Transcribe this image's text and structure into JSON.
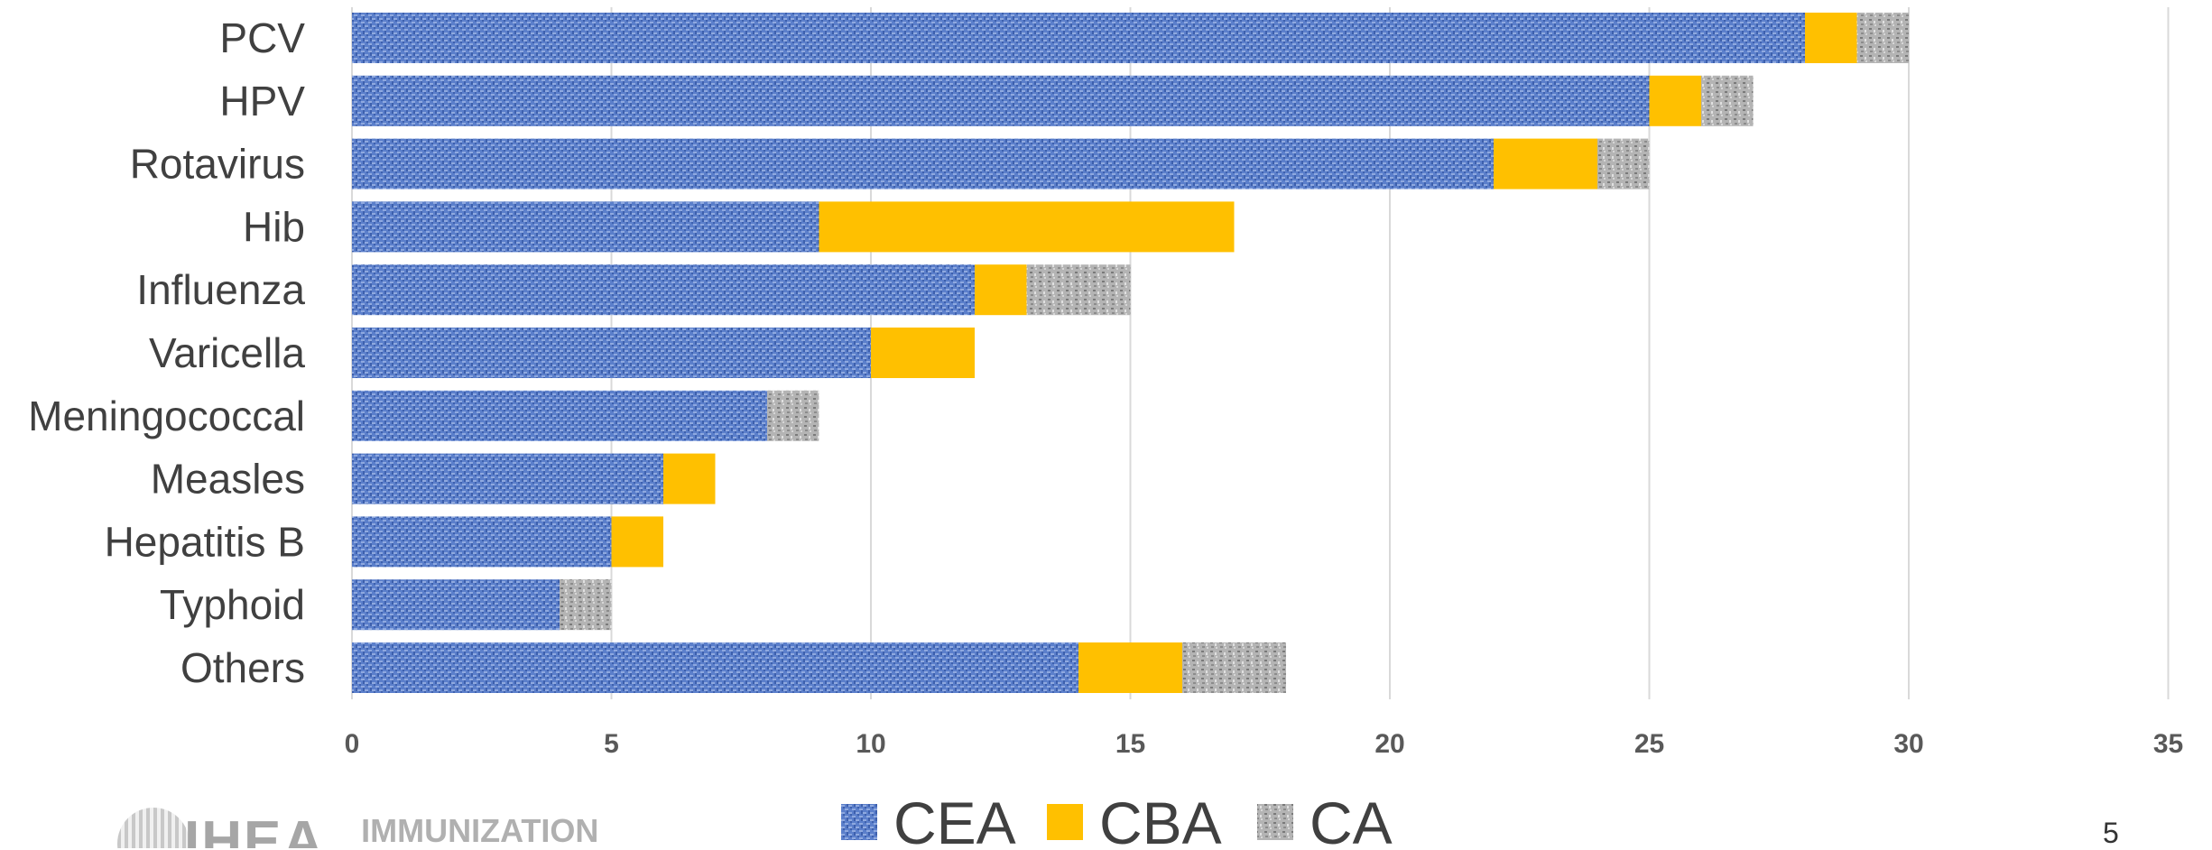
{
  "chart_data": {
    "type": "bar",
    "orientation": "horizontal",
    "stacked": true,
    "categories": [
      "PCV",
      "HPV",
      "Rotavirus",
      "Hib",
      "Influenza",
      "Varicella",
      "Meningococcal",
      "Measles",
      "Hepatitis B",
      "Typhoid",
      "Others"
    ],
    "series": [
      {
        "name": "CEA",
        "values": [
          28,
          25,
          22,
          9,
          12,
          10,
          8,
          6,
          5,
          4,
          14
        ],
        "color": "#4f74c4",
        "pattern": "woven-blue"
      },
      {
        "name": "CBA",
        "values": [
          1,
          1,
          2,
          8,
          1,
          2,
          0,
          1,
          1,
          0,
          2
        ],
        "color": "#ffc000",
        "pattern": "solid"
      },
      {
        "name": "CA",
        "values": [
          1,
          1,
          1,
          0,
          2,
          0,
          1,
          0,
          0,
          1,
          2
        ],
        "color": "#a6a6a6",
        "pattern": "granite-gray"
      }
    ],
    "xlim": [
      0,
      35
    ],
    "xticks": [
      0,
      5,
      10,
      15,
      20,
      25,
      30,
      35
    ],
    "grid": true,
    "legend_position": "bottom"
  },
  "footer": {
    "logo_text": "IHEA",
    "logo_subtext": "IMMUNIZATION",
    "page_number": "5"
  }
}
